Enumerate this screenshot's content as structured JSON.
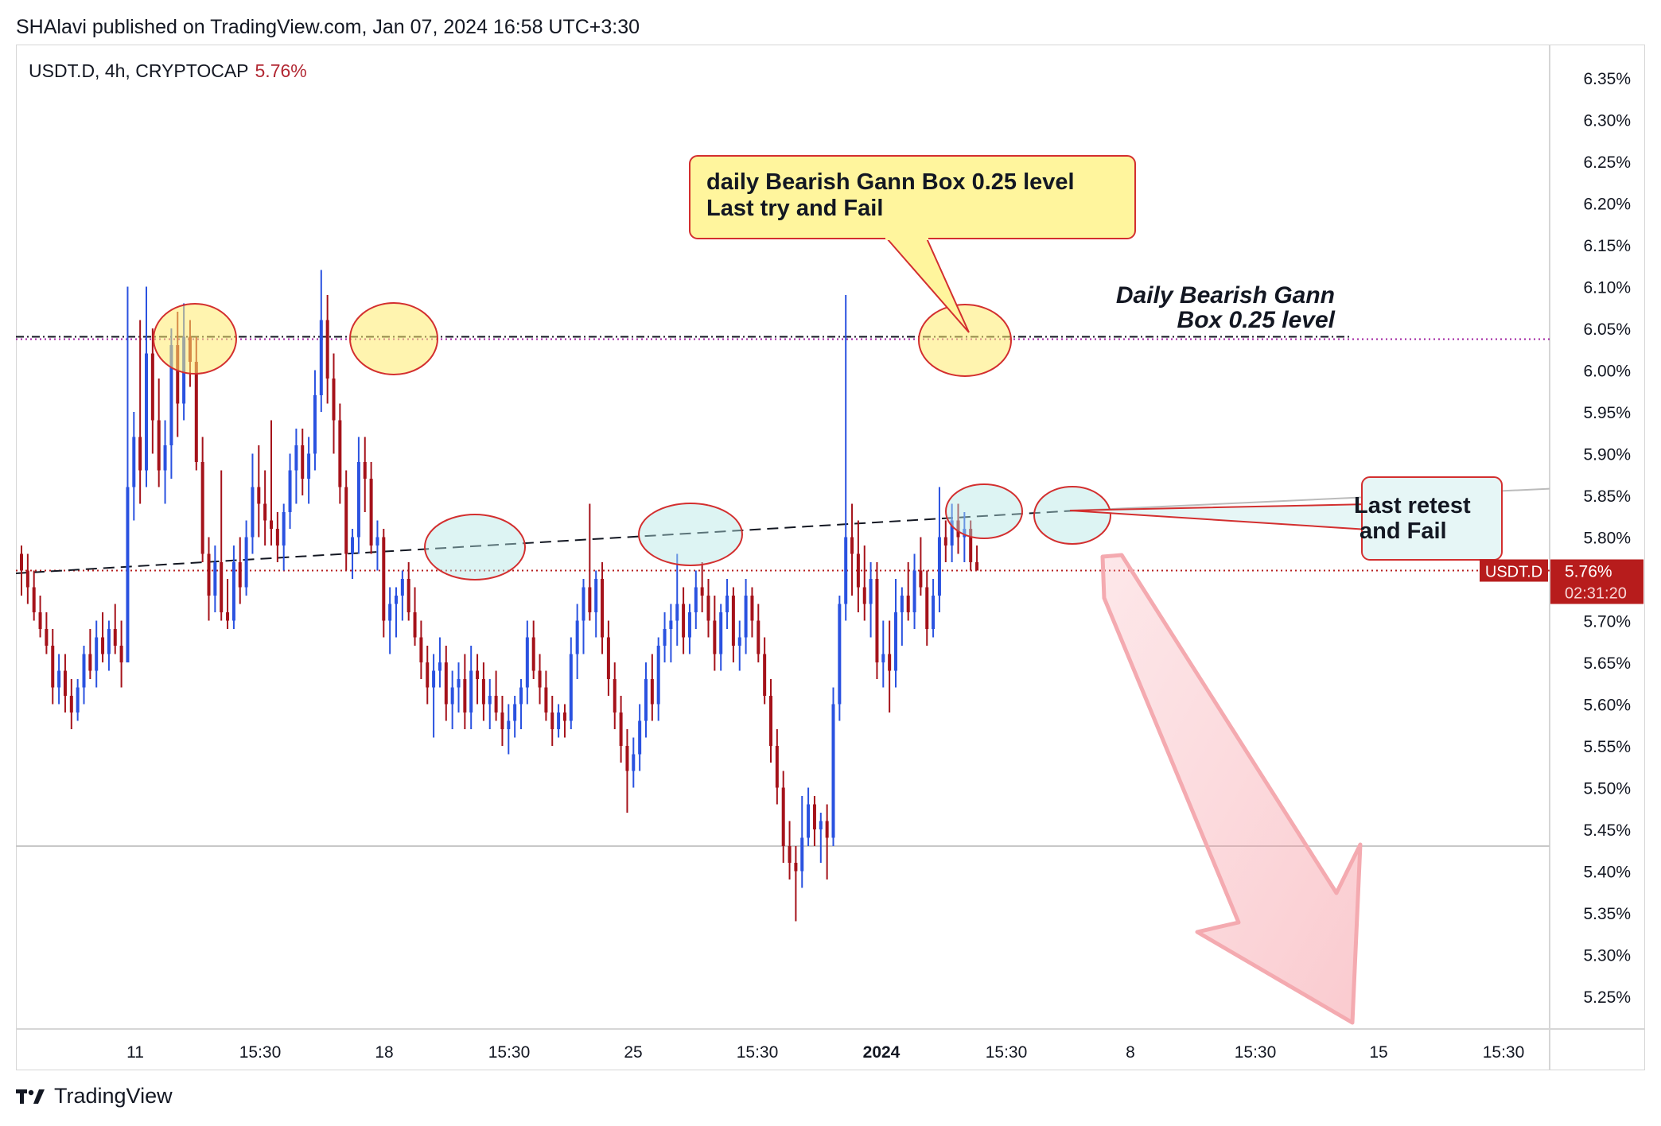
{
  "header": {
    "published": "SHAlavi published on TradingView.com, Jan 07, 2024 16:58 UTC+3:30"
  },
  "legend": {
    "symbol": "USDT.D, 4h, CRYPTOCAP",
    "value": "5.76%"
  },
  "footer": {
    "brand": "TradingView"
  },
  "colors": {
    "up": "#2a52e0",
    "down": "#a5121a",
    "accent": "#b71c1c",
    "callout_yellow": "#fff59d",
    "callout_teal": "#e6f6f6"
  },
  "chart_data": {
    "type": "candlestick",
    "symbol": "USDT.D",
    "timeframe": "4h",
    "ylim": [
      5.21,
      6.38
    ],
    "y_ticks": [
      "6.35%",
      "6.30%",
      "6.25%",
      "6.20%",
      "6.15%",
      "6.10%",
      "6.05%",
      "6.00%",
      "5.95%",
      "5.90%",
      "5.85%",
      "5.80%",
      "5.75%",
      "5.70%",
      "5.65%",
      "5.60%",
      "5.55%",
      "5.50%",
      "5.45%",
      "5.40%",
      "5.35%",
      "5.30%",
      "5.25%"
    ],
    "x_ticks": [
      "11",
      "15:30",
      "18",
      "15:30",
      "25",
      "15:30",
      "2024",
      "15:30",
      "8",
      "15:30",
      "15",
      "15:30"
    ],
    "current_price_label": "USDT.D",
    "current_price": "5.76%",
    "countdown": "02:31:20",
    "levels": [
      {
        "price": 6.04,
        "style": "dash-dot",
        "name": "Daily Bearish Gann Box 0.25 level"
      },
      {
        "price": 5.76,
        "style": "dotted",
        "name": "USDT.D"
      },
      {
        "price": 5.43,
        "style": "solid-gray"
      }
    ],
    "trendline": {
      "from_price": 5.75,
      "to_price": 5.86
    },
    "annotations": [
      {
        "text_lines": [
          "daily Bearish Gann Box 0.25 level",
          "Last try and Fail"
        ],
        "kind": "callout-yellow"
      },
      {
        "text_lines": [
          "Daily Bearish Gann",
          "Box 0.25 level"
        ],
        "kind": "italic-label"
      },
      {
        "text_lines": [
          "Last retest",
          " and Fail"
        ],
        "kind": "callout-teal"
      }
    ],
    "ohlc": [
      [
        5.78,
        5.79,
        5.73,
        5.76
      ],
      [
        5.76,
        5.78,
        5.72,
        5.74
      ],
      [
        5.74,
        5.76,
        5.7,
        5.71
      ],
      [
        5.71,
        5.73,
        5.68,
        5.69
      ],
      [
        5.69,
        5.71,
        5.66,
        5.67
      ],
      [
        5.67,
        5.69,
        5.6,
        5.62
      ],
      [
        5.62,
        5.66,
        5.6,
        5.64
      ],
      [
        5.64,
        5.66,
        5.59,
        5.61
      ],
      [
        5.61,
        5.63,
        5.57,
        5.59
      ],
      [
        5.59,
        5.63,
        5.58,
        5.62
      ],
      [
        5.62,
        5.67,
        5.6,
        5.66
      ],
      [
        5.66,
        5.69,
        5.63,
        5.64
      ],
      [
        5.64,
        5.7,
        5.62,
        5.68
      ],
      [
        5.68,
        5.71,
        5.65,
        5.66
      ],
      [
        5.66,
        5.7,
        5.64,
        5.69
      ],
      [
        5.69,
        5.72,
        5.66,
        5.67
      ],
      [
        5.67,
        5.7,
        5.62,
        5.65
      ],
      [
        5.65,
        6.1,
        5.65,
        5.86
      ],
      [
        5.86,
        5.95,
        5.82,
        5.92
      ],
      [
        5.92,
        6.06,
        5.84,
        5.88
      ],
      [
        5.88,
        6.1,
        5.86,
        6.02
      ],
      [
        6.02,
        6.05,
        5.9,
        5.94
      ],
      [
        5.94,
        5.99,
        5.86,
        5.88
      ],
      [
        5.88,
        5.94,
        5.84,
        5.91
      ],
      [
        5.91,
        6.05,
        5.87,
        6.03
      ],
      [
        6.03,
        6.07,
        5.92,
        5.96
      ],
      [
        5.96,
        6.08,
        5.94,
        6.04
      ],
      [
        6.04,
        6.06,
        5.98,
        6.01
      ],
      [
        6.01,
        6.04,
        5.88,
        5.89
      ],
      [
        5.89,
        5.92,
        5.77,
        5.78
      ],
      [
        5.78,
        5.8,
        5.7,
        5.73
      ],
      [
        5.73,
        5.79,
        5.71,
        5.77
      ],
      [
        5.77,
        5.88,
        5.7,
        5.71
      ],
      [
        5.71,
        5.75,
        5.69,
        5.7
      ],
      [
        5.7,
        5.79,
        5.69,
        5.77
      ],
      [
        5.77,
        5.8,
        5.72,
        5.74
      ],
      [
        5.74,
        5.82,
        5.73,
        5.8
      ],
      [
        5.8,
        5.9,
        5.78,
        5.86
      ],
      [
        5.86,
        5.91,
        5.8,
        5.84
      ],
      [
        5.84,
        5.88,
        5.79,
        5.82
      ],
      [
        5.82,
        5.94,
        5.79,
        5.81
      ],
      [
        5.81,
        5.83,
        5.77,
        5.79
      ],
      [
        5.79,
        5.84,
        5.76,
        5.83
      ],
      [
        5.83,
        5.9,
        5.81,
        5.88
      ],
      [
        5.88,
        5.93,
        5.84,
        5.91
      ],
      [
        5.91,
        5.93,
        5.85,
        5.87
      ],
      [
        5.87,
        5.92,
        5.84,
        5.9
      ],
      [
        5.9,
        6.0,
        5.88,
        5.97
      ],
      [
        5.97,
        6.12,
        5.95,
        6.06
      ],
      [
        6.06,
        6.09,
        5.96,
        5.99
      ],
      [
        5.99,
        6.02,
        5.9,
        5.94
      ],
      [
        5.94,
        5.96,
        5.84,
        5.86
      ],
      [
        5.86,
        5.88,
        5.76,
        5.78
      ],
      [
        5.78,
        5.81,
        5.75,
        5.8
      ],
      [
        5.8,
        5.92,
        5.78,
        5.89
      ],
      [
        5.89,
        5.92,
        5.83,
        5.87
      ],
      [
        5.87,
        5.89,
        5.78,
        5.79
      ],
      [
        5.79,
        5.82,
        5.76,
        5.8
      ],
      [
        5.8,
        5.81,
        5.68,
        5.7
      ],
      [
        5.7,
        5.74,
        5.66,
        5.72
      ],
      [
        5.72,
        5.74,
        5.68,
        5.73
      ],
      [
        5.73,
        5.76,
        5.7,
        5.75
      ],
      [
        5.75,
        5.77,
        5.7,
        5.71
      ],
      [
        5.71,
        5.74,
        5.67,
        5.68
      ],
      [
        5.68,
        5.7,
        5.63,
        5.65
      ],
      [
        5.65,
        5.67,
        5.6,
        5.62
      ],
      [
        5.62,
        5.66,
        5.56,
        5.64
      ],
      [
        5.64,
        5.68,
        5.62,
        5.65
      ],
      [
        5.65,
        5.67,
        5.58,
        5.6
      ],
      [
        5.6,
        5.64,
        5.57,
        5.62
      ],
      [
        5.62,
        5.65,
        5.59,
        5.63
      ],
      [
        5.63,
        5.66,
        5.57,
        5.59
      ],
      [
        5.59,
        5.67,
        5.57,
        5.64
      ],
      [
        5.64,
        5.66,
        5.6,
        5.63
      ],
      [
        5.63,
        5.65,
        5.58,
        5.6
      ],
      [
        5.6,
        5.63,
        5.57,
        5.61
      ],
      [
        5.61,
        5.64,
        5.58,
        5.59
      ],
      [
        5.59,
        5.61,
        5.55,
        5.57
      ],
      [
        5.57,
        5.6,
        5.54,
        5.58
      ],
      [
        5.58,
        5.61,
        5.56,
        5.6
      ],
      [
        5.6,
        5.63,
        5.57,
        5.62
      ],
      [
        5.62,
        5.7,
        5.6,
        5.68
      ],
      [
        5.68,
        5.7,
        5.63,
        5.64
      ],
      [
        5.64,
        5.66,
        5.6,
        5.62
      ],
      [
        5.62,
        5.64,
        5.58,
        5.59
      ],
      [
        5.59,
        5.61,
        5.55,
        5.57
      ],
      [
        5.57,
        5.6,
        5.56,
        5.59
      ],
      [
        5.59,
        5.6,
        5.56,
        5.58
      ],
      [
        5.58,
        5.68,
        5.57,
        5.66
      ],
      [
        5.66,
        5.72,
        5.63,
        5.7
      ],
      [
        5.7,
        5.75,
        5.66,
        5.74
      ],
      [
        5.74,
        5.84,
        5.7,
        5.71
      ],
      [
        5.71,
        5.76,
        5.68,
        5.75
      ],
      [
        5.75,
        5.77,
        5.66,
        5.68
      ],
      [
        5.68,
        5.7,
        5.61,
        5.63
      ],
      [
        5.63,
        5.65,
        5.57,
        5.59
      ],
      [
        5.59,
        5.61,
        5.53,
        5.55
      ],
      [
        5.55,
        5.57,
        5.47,
        5.52
      ],
      [
        5.52,
        5.56,
        5.5,
        5.54
      ],
      [
        5.54,
        5.6,
        5.52,
        5.58
      ],
      [
        5.58,
        5.65,
        5.56,
        5.63
      ],
      [
        5.63,
        5.66,
        5.58,
        5.6
      ],
      [
        5.6,
        5.68,
        5.58,
        5.67
      ],
      [
        5.67,
        5.71,
        5.65,
        5.69
      ],
      [
        5.69,
        5.72,
        5.65,
        5.7
      ],
      [
        5.7,
        5.78,
        5.67,
        5.72
      ],
      [
        5.72,
        5.74,
        5.66,
        5.68
      ],
      [
        5.68,
        5.72,
        5.66,
        5.71
      ],
      [
        5.71,
        5.76,
        5.69,
        5.74
      ],
      [
        5.74,
        5.77,
        5.71,
        5.73
      ],
      [
        5.73,
        5.75,
        5.68,
        5.7
      ],
      [
        5.7,
        5.73,
        5.64,
        5.66
      ],
      [
        5.66,
        5.72,
        5.64,
        5.71
      ],
      [
        5.71,
        5.75,
        5.69,
        5.73
      ],
      [
        5.73,
        5.74,
        5.65,
        5.67
      ],
      [
        5.67,
        5.7,
        5.64,
        5.68
      ],
      [
        5.68,
        5.75,
        5.66,
        5.73
      ],
      [
        5.73,
        5.74,
        5.68,
        5.7
      ],
      [
        5.7,
        5.72,
        5.65,
        5.66
      ],
      [
        5.66,
        5.68,
        5.6,
        5.61
      ],
      [
        5.61,
        5.63,
        5.53,
        5.55
      ],
      [
        5.55,
        5.57,
        5.48,
        5.5
      ],
      [
        5.5,
        5.52,
        5.41,
        5.43
      ],
      [
        5.43,
        5.46,
        5.39,
        5.41
      ],
      [
        5.41,
        5.43,
        5.34,
        5.4
      ],
      [
        5.4,
        5.49,
        5.38,
        5.44
      ],
      [
        5.44,
        5.5,
        5.43,
        5.48
      ],
      [
        5.48,
        5.49,
        5.43,
        5.45
      ],
      [
        5.45,
        5.47,
        5.41,
        5.46
      ],
      [
        5.46,
        5.48,
        5.39,
        5.44
      ],
      [
        5.44,
        5.62,
        5.43,
        5.6
      ],
      [
        5.6,
        5.73,
        5.58,
        5.72
      ],
      [
        5.72,
        6.09,
        5.7,
        5.8
      ],
      [
        5.8,
        5.84,
        5.73,
        5.78
      ],
      [
        5.78,
        5.82,
        5.71,
        5.74
      ],
      [
        5.74,
        5.79,
        5.7,
        5.72
      ],
      [
        5.72,
        5.77,
        5.68,
        5.75
      ],
      [
        5.75,
        5.77,
        5.63,
        5.65
      ],
      [
        5.65,
        5.7,
        5.62,
        5.66
      ],
      [
        5.66,
        5.7,
        5.59,
        5.64
      ],
      [
        5.64,
        5.75,
        5.62,
        5.71
      ],
      [
        5.71,
        5.74,
        5.67,
        5.73
      ],
      [
        5.73,
        5.77,
        5.7,
        5.71
      ],
      [
        5.71,
        5.78,
        5.69,
        5.76
      ],
      [
        5.76,
        5.8,
        5.73,
        5.74
      ],
      [
        5.74,
        5.76,
        5.67,
        5.69
      ],
      [
        5.69,
        5.75,
        5.68,
        5.73
      ],
      [
        5.73,
        5.86,
        5.71,
        5.8
      ],
      [
        5.8,
        5.82,
        5.77,
        5.79
      ],
      [
        5.79,
        5.84,
        5.77,
        5.82
      ],
      [
        5.82,
        5.84,
        5.78,
        5.8
      ],
      [
        5.8,
        5.83,
        5.77,
        5.81
      ],
      [
        5.81,
        5.82,
        5.76,
        5.77
      ],
      [
        5.77,
        5.79,
        5.76,
        5.76
      ]
    ]
  }
}
